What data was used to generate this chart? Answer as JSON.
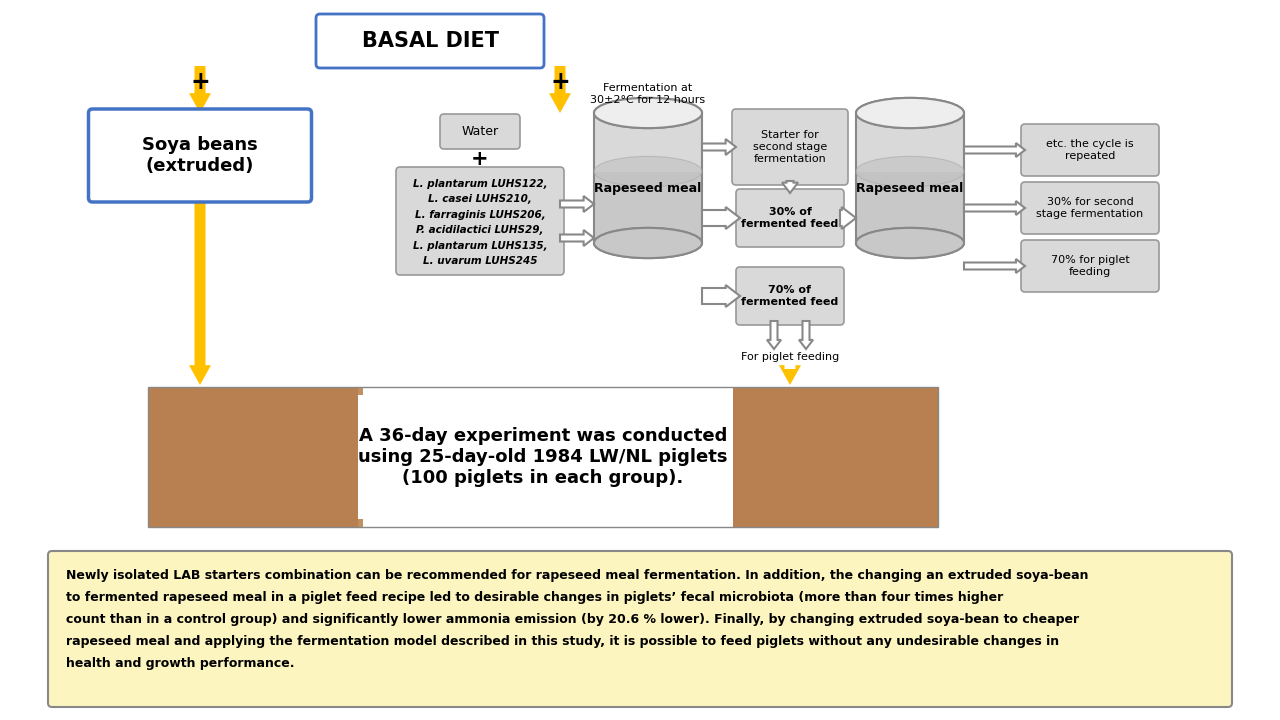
{
  "title": "BASAL DIET",
  "soya_label": "Soya beans\n(extruded)",
  "water_label": "Water",
  "fermentation_label": "Fermentation at\n30±2°C for 12 hours",
  "rapeseed_label": "Rapeseed meal",
  "starter_label": "Starter for\nsecond stage\nfermentation",
  "thirty_pct_label": "30% of\nfermented feed",
  "seventy_pct_label": "70% of\nfermented feed",
  "piglet_feeding_label": "For piglet feeding",
  "cycle_label": "etc. the cycle is\nrepeated",
  "second_stage_label": "30% for second\nstage fermentation",
  "seventy_piglet_label": "70% for piglet\nfeeding",
  "experiment_text": "A 36-day experiment was conducted\nusing 25-day-old 1984 LW/NL piglets\n(100 piglets in each group).",
  "bg_color": "#ffffff",
  "box_blue_edge": "#4472c4",
  "box_gray_face": "#d9d9d9",
  "box_gray_edge": "#999999",
  "arrow_yellow": "#ffc000",
  "conclusion_bg": "#fdf5c0",
  "conclusion_border": "#888888",
  "pig_bg": "#b8956a"
}
